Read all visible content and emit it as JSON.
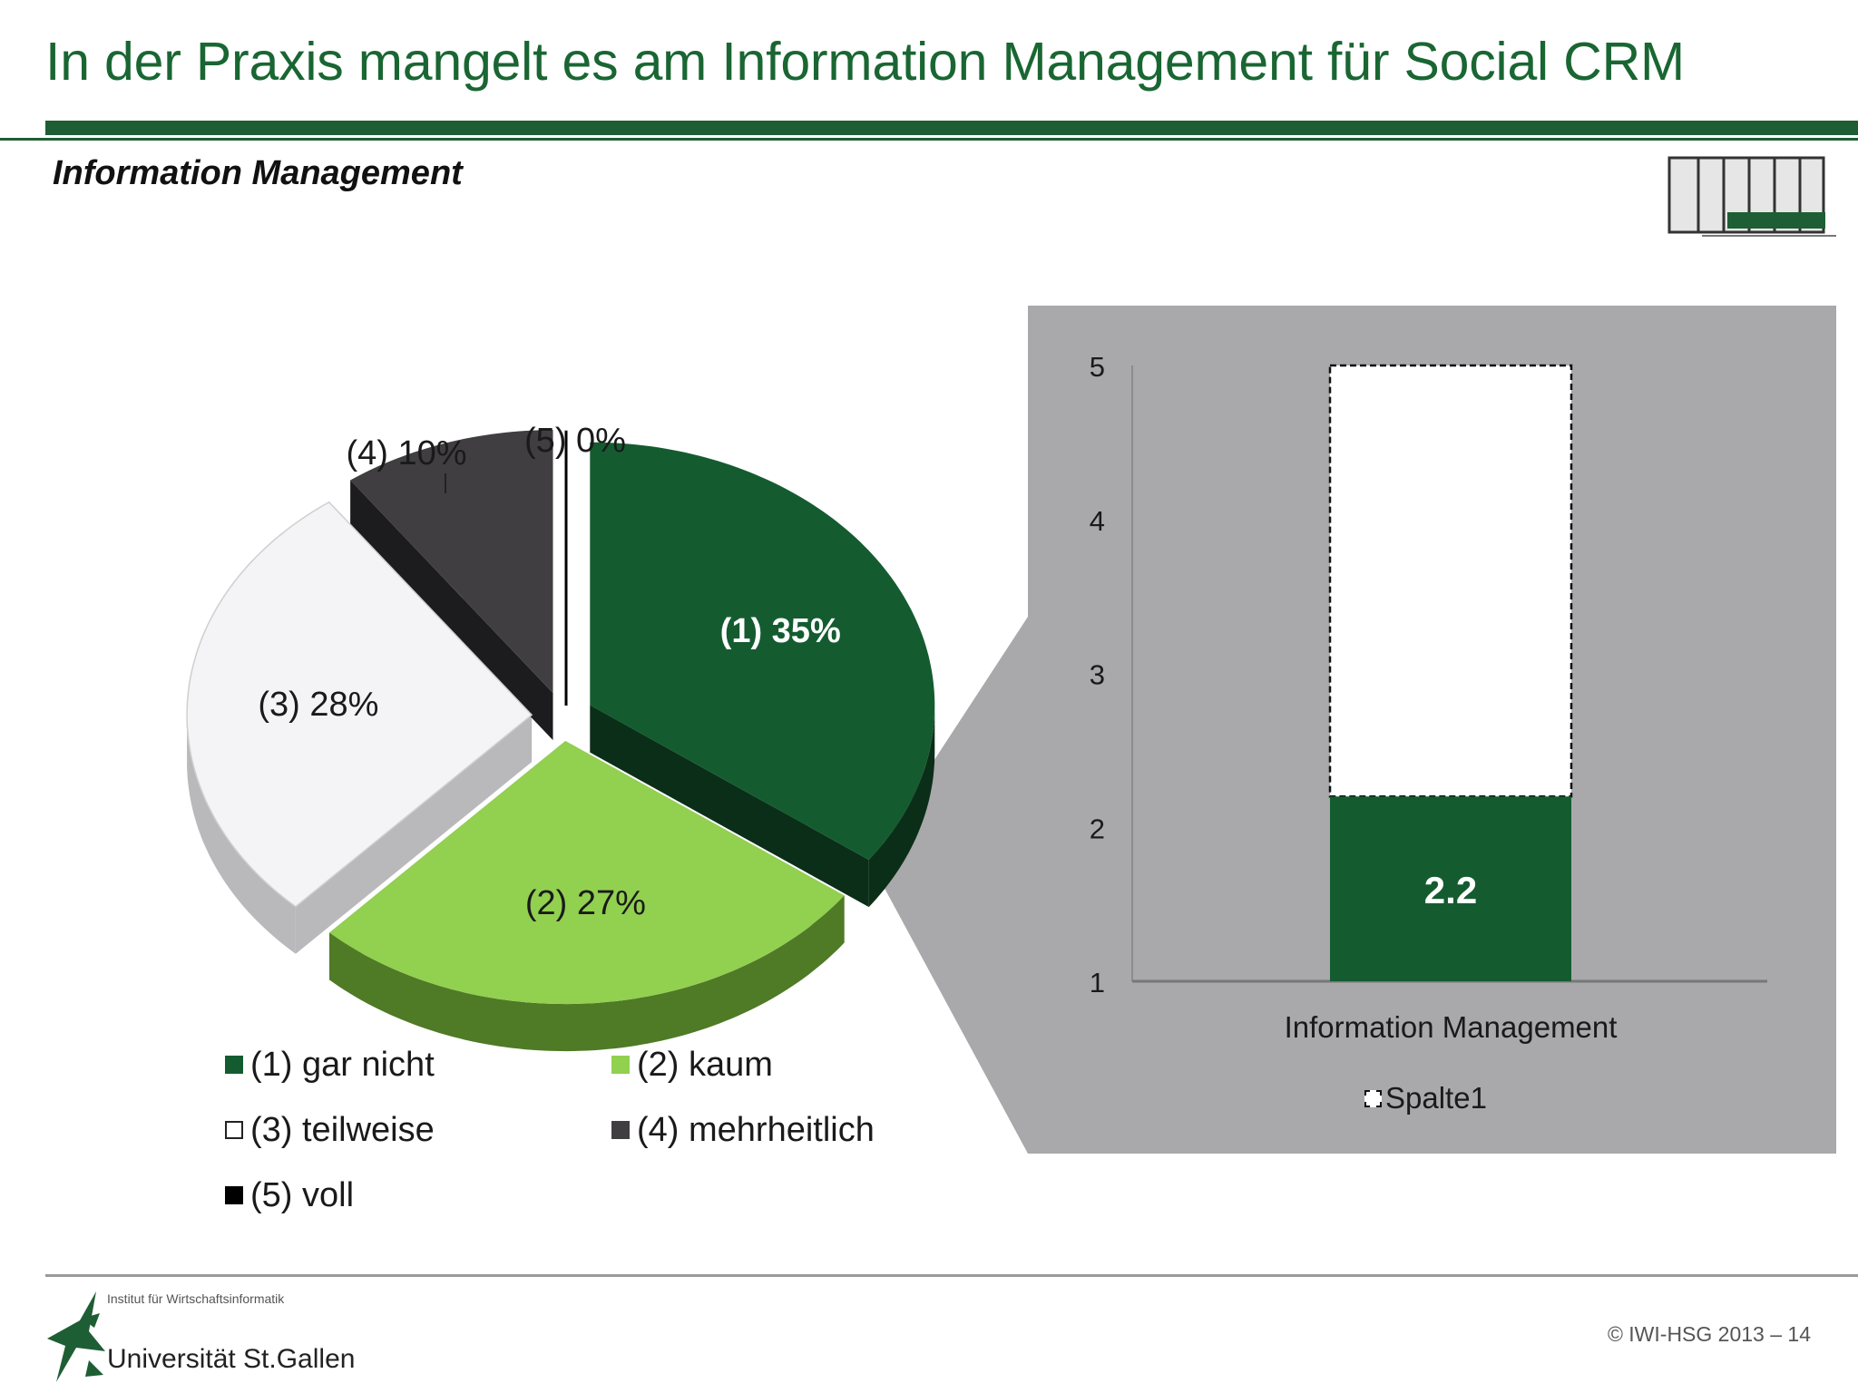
{
  "slide": {
    "title": "In der Praxis mangelt es am Information Management für Social CRM",
    "subtitle": "Information Management",
    "copyright": "© IWI-HSG 2013 – 14"
  },
  "footer": {
    "institute": "Institut für Wirtschaftsinformatik",
    "university": "Universität St.Gallen"
  },
  "icons": {
    "phase_diagram": "phase-diagram-icon",
    "logo": "hsg-logo-icon"
  },
  "colors": {
    "brand_green": "#1e5e34",
    "panel_gray": "#a9a8aa"
  },
  "chart_data": [
    {
      "type": "pie",
      "slices": [
        {
          "label": "(1) 35%",
          "legend": "(1) gar nicht",
          "value": 35,
          "color": "#145c30",
          "side": "#0b2e18"
        },
        {
          "label": "(2) 27%",
          "legend": "(2) kaum",
          "value": 27,
          "color": "#92d050",
          "side": "#4f7a26"
        },
        {
          "label": "(3) 28%",
          "legend": "(3) teilweise",
          "value": 28,
          "color": "#f4f3f5",
          "side": "#b9b8ba"
        },
        {
          "label": "(4) 10%",
          "legend": "(4) mehrheitlich",
          "value": 10,
          "color": "#403e41",
          "side": "#1c1b1d"
        },
        {
          "label": "(5) 0%",
          "legend": "(5) voll",
          "value": 0,
          "color": "#000000",
          "side": "#000000"
        }
      ]
    },
    {
      "type": "bar",
      "categories": [
        "Information Management"
      ],
      "series": [
        {
          "name": "Information Management",
          "values": [
            2.2
          ],
          "color": "#145c30"
        },
        {
          "name": "Spalte1",
          "values": [
            5
          ],
          "color": "#ffffff"
        }
      ],
      "data_labels": [
        "2.2"
      ],
      "ylim": [
        1,
        5
      ],
      "yticks": [
        "1",
        "2",
        "3",
        "4",
        "5"
      ],
      "legend": "Spalte1",
      "legend_position": "bottom"
    }
  ]
}
